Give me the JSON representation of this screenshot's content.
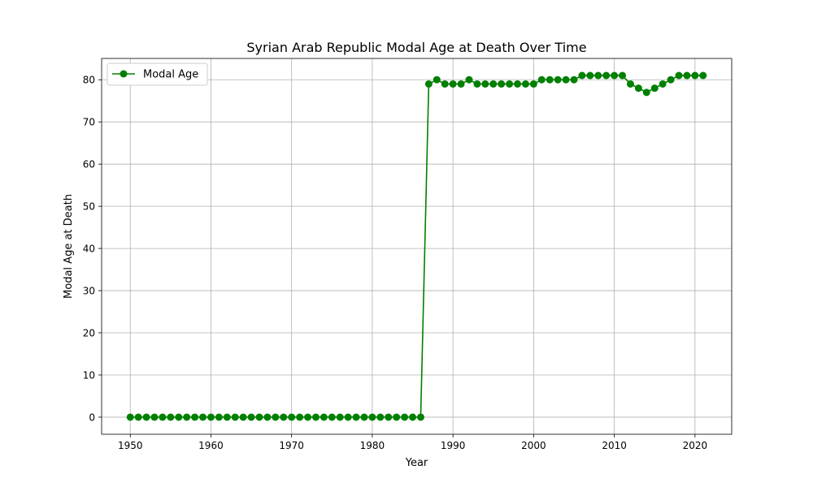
{
  "chart_data": {
    "type": "line",
    "title": "Syrian Arab Republic Modal Age at Death Over Time",
    "xlabel": "Year",
    "ylabel": "Modal Age at Death",
    "xlim": [
      1946.45,
      2024.55
    ],
    "ylim": [
      -4.05,
      85.05
    ],
    "xticks": [
      1950,
      1960,
      1970,
      1980,
      1990,
      2000,
      2010,
      2020
    ],
    "yticks": [
      0,
      10,
      20,
      30,
      40,
      50,
      60,
      70,
      80
    ],
    "grid": true,
    "legend": {
      "position": "top-left"
    },
    "series": [
      {
        "name": "Modal Age",
        "color": "#008000",
        "marker": "circle",
        "x": [
          1950,
          1951,
          1952,
          1953,
          1954,
          1955,
          1956,
          1957,
          1958,
          1959,
          1960,
          1961,
          1962,
          1963,
          1964,
          1965,
          1966,
          1967,
          1968,
          1969,
          1970,
          1971,
          1972,
          1973,
          1974,
          1975,
          1976,
          1977,
          1978,
          1979,
          1980,
          1981,
          1982,
          1983,
          1984,
          1985,
          1986,
          1987,
          1988,
          1989,
          1990,
          1991,
          1992,
          1993,
          1994,
          1995,
          1996,
          1997,
          1998,
          1999,
          2000,
          2001,
          2002,
          2003,
          2004,
          2005,
          2006,
          2007,
          2008,
          2009,
          2010,
          2011,
          2012,
          2013,
          2014,
          2015,
          2016,
          2017,
          2018,
          2019,
          2020,
          2021
        ],
        "y": [
          0,
          0,
          0,
          0,
          0,
          0,
          0,
          0,
          0,
          0,
          0,
          0,
          0,
          0,
          0,
          0,
          0,
          0,
          0,
          0,
          0,
          0,
          0,
          0,
          0,
          0,
          0,
          0,
          0,
          0,
          0,
          0,
          0,
          0,
          0,
          0,
          0,
          79,
          80,
          79,
          79,
          79,
          80,
          79,
          79,
          79,
          79,
          79,
          79,
          79,
          79,
          80,
          80,
          80,
          80,
          80,
          81,
          81,
          81,
          81,
          81,
          81,
          79,
          78,
          77,
          78,
          79,
          80,
          81,
          81,
          81,
          81
        ]
      }
    ]
  }
}
